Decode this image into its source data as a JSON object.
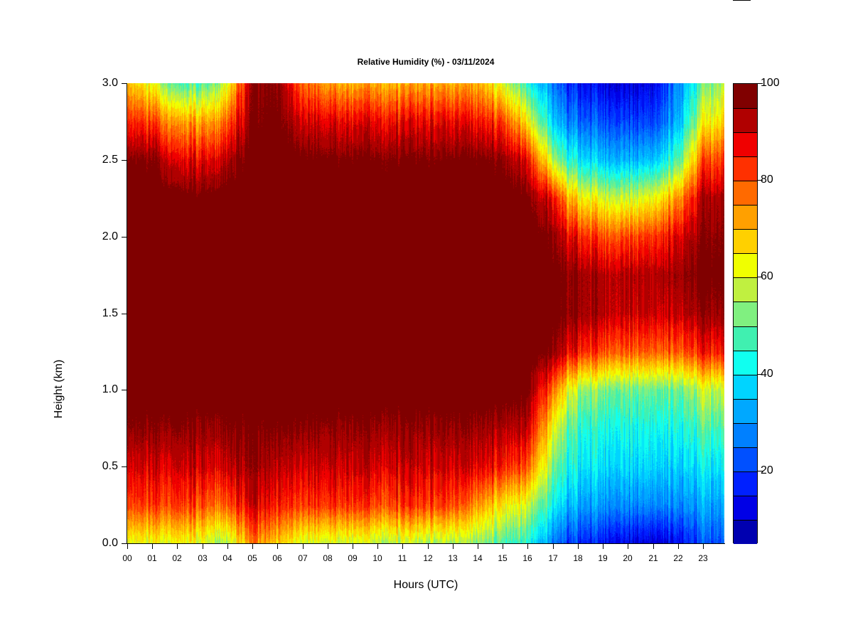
{
  "chart_data": {
    "type": "heatmap",
    "title": "Relative Humidity (%) - 03/11/2024",
    "xlabel": "Hours (UTC)",
    "ylabel": "Height (km)",
    "xlim": [
      0,
      23.87
    ],
    "ylim": [
      0,
      3.0
    ],
    "x_tick_labels": [
      "00",
      "01",
      "02",
      "03",
      "04",
      "05",
      "06",
      "07",
      "08",
      "09",
      "10",
      "11",
      "12",
      "13",
      "14",
      "15",
      "16",
      "17",
      "18",
      "19",
      "20",
      "21",
      "22",
      "23"
    ],
    "y_ticks": [
      0.0,
      0.5,
      1.0,
      1.5,
      2.0,
      2.5,
      3.0
    ],
    "y_tick_labels": [
      "0.0",
      "0.5",
      "1.0",
      "1.5",
      "2.0",
      "2.5",
      "3.0"
    ],
    "colorbar": {
      "levels": [
        5,
        10,
        15,
        20,
        25,
        30,
        35,
        40,
        45,
        50,
        55,
        60,
        65,
        70,
        75,
        80,
        85,
        90,
        95,
        100
      ],
      "colors": [
        "#00007f",
        "#0000b0",
        "#0000e6",
        "#0020ff",
        "#0050ff",
        "#0080ff",
        "#00a8ff",
        "#00d4ff",
        "#10fff0",
        "#40f0b0",
        "#80f080",
        "#c0f040",
        "#f0ff00",
        "#ffd000",
        "#ffa000",
        "#ff6a00",
        "#ff3000",
        "#f00000",
        "#b00000",
        "#800000"
      ],
      "tick_values": [
        20,
        40,
        60,
        80,
        100
      ],
      "tick_labels": [
        "20",
        "40",
        "60",
        "80",
        "100"
      ]
    },
    "grid_hours": [
      0,
      1,
      2,
      3,
      4,
      5,
      6,
      7,
      8,
      9,
      10,
      11,
      12,
      13,
      14,
      15,
      16,
      17,
      18,
      19,
      20,
      21,
      22,
      23,
      24
    ],
    "grid_heights_km": [
      0,
      0.25,
      0.5,
      0.75,
      1.0,
      1.25,
      1.5,
      1.75,
      2.0,
      2.25,
      2.5,
      2.75,
      3.0
    ],
    "rh_values": [
      [
        62,
        82,
        90,
        96,
        100,
        100,
        100,
        100,
        100,
        100,
        97,
        85,
        70
      ],
      [
        60,
        80,
        88,
        95,
        100,
        100,
        100,
        100,
        100,
        100,
        96,
        80,
        60
      ],
      [
        65,
        85,
        92,
        97,
        100,
        100,
        100,
        100,
        100,
        99,
        90,
        75,
        50
      ],
      [
        60,
        80,
        90,
        95,
        100,
        100,
        100,
        100,
        100,
        98,
        88,
        72,
        48
      ],
      [
        55,
        78,
        90,
        96,
        100,
        100,
        100,
        100,
        100,
        100,
        92,
        78,
        60
      ],
      [
        75,
        90,
        95,
        97,
        100,
        100,
        100,
        100,
        100,
        100,
        100,
        97,
        96
      ],
      [
        68,
        85,
        92,
        97,
        100,
        100,
        100,
        100,
        100,
        100,
        100,
        98,
        96
      ],
      [
        60,
        82,
        90,
        96,
        100,
        100,
        100,
        100,
        100,
        100,
        98,
        90,
        78
      ],
      [
        58,
        82,
        90,
        95,
        100,
        100,
        100,
        100,
        100,
        100,
        97,
        88,
        72
      ],
      [
        58,
        82,
        90,
        95,
        100,
        100,
        100,
        100,
        100,
        100,
        97,
        87,
        70
      ],
      [
        57,
        81,
        90,
        95,
        100,
        100,
        100,
        100,
        100,
        100,
        97,
        88,
        72
      ],
      [
        57,
        82,
        90,
        95,
        100,
        100,
        100,
        100,
        100,
        100,
        97,
        87,
        70
      ],
      [
        56,
        82,
        90,
        95,
        100,
        100,
        100,
        100,
        100,
        100,
        97,
        88,
        72
      ],
      [
        55,
        80,
        89,
        95,
        100,
        100,
        100,
        100,
        100,
        100,
        97,
        87,
        70
      ],
      [
        52,
        72,
        88,
        94,
        100,
        100,
        100,
        100,
        100,
        100,
        97,
        85,
        70
      ],
      [
        48,
        65,
        85,
        93,
        100,
        100,
        100,
        100,
        100,
        100,
        96,
        82,
        60
      ],
      [
        45,
        60,
        80,
        92,
        98,
        100,
        100,
        100,
        100,
        98,
        88,
        65,
        45
      ],
      [
        25,
        40,
        50,
        60,
        75,
        95,
        98,
        98,
        95,
        85,
        55,
        35,
        25
      ],
      [
        18,
        32,
        40,
        45,
        55,
        85,
        95,
        95,
        85,
        65,
        40,
        25,
        15
      ],
      [
        15,
        30,
        38,
        43,
        52,
        80,
        92,
        92,
        80,
        60,
        35,
        22,
        12
      ],
      [
        12,
        28,
        37,
        42,
        50,
        78,
        90,
        92,
        80,
        58,
        33,
        20,
        10
      ],
      [
        10,
        28,
        37,
        42,
        50,
        78,
        90,
        92,
        82,
        62,
        35,
        20,
        12
      ],
      [
        15,
        30,
        38,
        44,
        52,
        80,
        92,
        95,
        90,
        75,
        50,
        35,
        30
      ],
      [
        22,
        32,
        40,
        48,
        58,
        85,
        95,
        98,
        96,
        93,
        80,
        62,
        50
      ],
      [
        25,
        34,
        42,
        50,
        60,
        88,
        96,
        98,
        97,
        95,
        85,
        70,
        60
      ]
    ]
  }
}
